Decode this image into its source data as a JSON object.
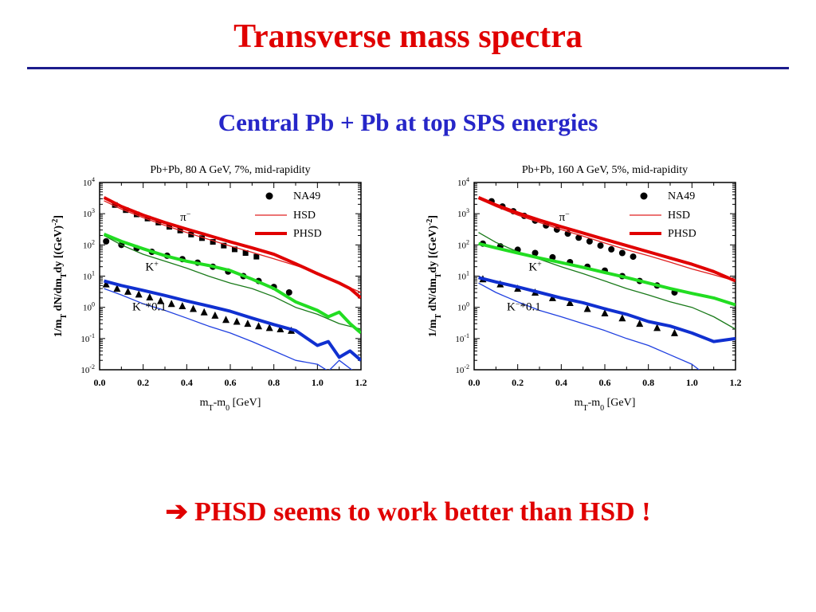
{
  "slide": {
    "title": "Transverse mass spectra",
    "subtitle": "Central Pb + Pb at top SPS energies",
    "conclusion_arrow": "➔",
    "conclusion": "PHSD seems to work better than HSD !",
    "title_color": "#e00000",
    "subtitle_color": "#2626c8",
    "rule_color": "#1c1c8c"
  },
  "chart_data": [
    {
      "type": "line",
      "title": "Pb+Pb, 80 A GeV, 7%, mid-rapidity",
      "xlabel": "mT-m0 [GeV]",
      "ylabel": "1/mT dN/dmTdy [(GeV)-2]",
      "xlim": [
        0.0,
        1.2
      ],
      "ylim": [
        0.01,
        10000
      ],
      "yscale": "log",
      "grid": false,
      "legend_position": "top-right",
      "xticks": [
        "0.0",
        "0.2",
        "0.4",
        "0.6",
        "0.8",
        "1.0",
        "1.2"
      ],
      "yticks": [
        "10-2",
        "10-1",
        "100",
        "101",
        "102",
        "103",
        "104"
      ],
      "legend": [
        "NA49",
        "HSD",
        "PHSD"
      ],
      "annotations": [
        {
          "text": "π−",
          "x": 0.37,
          "y": 600
        },
        {
          "text": "K+",
          "x": 0.21,
          "y": 15
        },
        {
          "text": "K−*0.1",
          "x": 0.15,
          "y": 0.8
        }
      ],
      "series": [
        {
          "name": "NA49",
          "particle": "pi-",
          "marker": "square",
          "x": [
            0.07,
            0.12,
            0.17,
            0.22,
            0.27,
            0.32,
            0.37,
            0.42,
            0.47,
            0.52,
            0.57,
            0.62,
            0.67,
            0.72
          ],
          "y": [
            1900,
            1300,
            950,
            700,
            520,
            380,
            290,
            215,
            165,
            125,
            95,
            72,
            55,
            42
          ]
        },
        {
          "name": "HSD",
          "particle": "pi-",
          "x": [
            0.02,
            0.1,
            0.2,
            0.3,
            0.4,
            0.5,
            0.6,
            0.7,
            0.8,
            0.9,
            1.0,
            1.1,
            1.2
          ],
          "y": [
            2600,
            1400,
            750,
            420,
            250,
            150,
            92,
            58,
            36,
            22,
            13,
            6,
            3
          ]
        },
        {
          "name": "PHSD",
          "particle": "pi-",
          "x": [
            0.02,
            0.1,
            0.2,
            0.3,
            0.4,
            0.5,
            0.6,
            0.7,
            0.8,
            0.9,
            1.0,
            1.1,
            1.15,
            1.2
          ],
          "y": [
            3300,
            1700,
            900,
            520,
            320,
            200,
            125,
            80,
            50,
            25,
            12,
            6,
            4,
            2
          ]
        },
        {
          "name": "NA49",
          "particle": "K+",
          "marker": "circle",
          "x": [
            0.03,
            0.1,
            0.17,
            0.24,
            0.31,
            0.38,
            0.45,
            0.52,
            0.59,
            0.66,
            0.73,
            0.8,
            0.87
          ],
          "y": [
            130,
            100,
            78,
            60,
            45,
            35,
            27,
            20,
            14,
            10,
            7,
            4.5,
            3
          ]
        },
        {
          "name": "HSD",
          "particle": "K+",
          "x": [
            0.02,
            0.1,
            0.2,
            0.3,
            0.4,
            0.5,
            0.6,
            0.7,
            0.8,
            0.9,
            1.0,
            1.1,
            1.2
          ],
          "y": [
            200,
            100,
            50,
            30,
            18,
            10,
            6,
            4,
            2.2,
            1,
            0.6,
            0.3,
            0.2
          ]
        },
        {
          "name": "PHSD",
          "particle": "K+",
          "x": [
            0.02,
            0.1,
            0.2,
            0.3,
            0.4,
            0.5,
            0.6,
            0.7,
            0.8,
            0.9,
            1.0,
            1.05,
            1.1,
            1.15,
            1.2
          ],
          "y": [
            220,
            130,
            75,
            45,
            30,
            22,
            15,
            8,
            4,
            1.5,
            0.8,
            0.5,
            0.7,
            0.3,
            0.15
          ]
        },
        {
          "name": "NA49",
          "particle": "K-",
          "marker": "triangle",
          "x": [
            0.03,
            0.08,
            0.13,
            0.18,
            0.23,
            0.28,
            0.33,
            0.38,
            0.43,
            0.48,
            0.53,
            0.58,
            0.63,
            0.68,
            0.73,
            0.78,
            0.83,
            0.88
          ],
          "y": [
            5.5,
            4,
            3.2,
            2.6,
            2.1,
            1.6,
            1.3,
            1.1,
            0.9,
            0.7,
            0.55,
            0.4,
            0.35,
            0.3,
            0.25,
            0.22,
            0.2,
            0.18
          ]
        },
        {
          "name": "HSD",
          "particle": "K-",
          "x": [
            0.02,
            0.1,
            0.2,
            0.3,
            0.4,
            0.5,
            0.6,
            0.7,
            0.8,
            0.9,
            1.0,
            1.05,
            1.1,
            1.2
          ],
          "y": [
            4,
            2.5,
            1.3,
            0.8,
            0.45,
            0.25,
            0.15,
            0.08,
            0.04,
            0.02,
            0.015,
            0.009,
            0.02,
            0.006
          ]
        },
        {
          "name": "PHSD",
          "particle": "K-",
          "x": [
            0.02,
            0.1,
            0.2,
            0.3,
            0.4,
            0.5,
            0.6,
            0.7,
            0.8,
            0.9,
            1.0,
            1.05,
            1.1,
            1.15,
            1.2
          ],
          "y": [
            7,
            5,
            3.5,
            2.4,
            1.6,
            1.1,
            0.75,
            0.45,
            0.28,
            0.18,
            0.06,
            0.08,
            0.025,
            0.04,
            0.02
          ]
        }
      ]
    },
    {
      "type": "line",
      "title": "Pb+Pb, 160 A GeV, 5%, mid-rapidity",
      "xlabel": "mT-m0 [GeV]",
      "ylabel": "1/mT dN/dmTdy [(GeV)-2]",
      "xlim": [
        0.0,
        1.2
      ],
      "ylim": [
        0.01,
        10000
      ],
      "yscale": "log",
      "grid": false,
      "legend_position": "top-right",
      "xticks": [
        "0.0",
        "0.2",
        "0.4",
        "0.6",
        "0.8",
        "1.0",
        "1.2"
      ],
      "yticks": [
        "10-2",
        "10-1",
        "100",
        "101",
        "102",
        "103",
        "104"
      ],
      "legend": [
        "NA49",
        "HSD",
        "PHSD"
      ],
      "annotations": [
        {
          "text": "π−",
          "x": 0.39,
          "y": 600
        },
        {
          "text": "K+",
          "x": 0.25,
          "y": 15
        },
        {
          "text": "K−*0.1",
          "x": 0.15,
          "y": 0.8
        }
      ],
      "series": [
        {
          "name": "NA49",
          "particle": "pi-",
          "marker": "circle",
          "x": [
            0.08,
            0.13,
            0.18,
            0.23,
            0.28,
            0.33,
            0.38,
            0.43,
            0.48,
            0.53,
            0.58,
            0.63,
            0.68,
            0.73
          ],
          "y": [
            2500,
            1700,
            1200,
            850,
            600,
            420,
            310,
            230,
            170,
            130,
            95,
            72,
            55,
            42
          ]
        },
        {
          "name": "HSD",
          "particle": "pi-",
          "x": [
            0.02,
            0.1,
            0.2,
            0.3,
            0.4,
            0.5,
            0.6,
            0.7,
            0.8,
            0.9,
            1.0,
            1.1,
            1.2
          ],
          "y": [
            3000,
            1700,
            900,
            520,
            310,
            190,
            115,
            70,
            45,
            28,
            17,
            11,
            7
          ]
        },
        {
          "name": "PHSD",
          "particle": "pi-",
          "x": [
            0.02,
            0.1,
            0.2,
            0.3,
            0.4,
            0.5,
            0.6,
            0.7,
            0.8,
            0.9,
            1.0,
            1.1,
            1.2
          ],
          "y": [
            3300,
            1900,
            1050,
            620,
            380,
            240,
            150,
            95,
            60,
            38,
            24,
            14,
            7
          ]
        },
        {
          "name": "NA49",
          "particle": "K+",
          "marker": "circle",
          "x": [
            0.04,
            0.12,
            0.2,
            0.28,
            0.36,
            0.44,
            0.52,
            0.6,
            0.68,
            0.76,
            0.84,
            0.92
          ],
          "y": [
            110,
            90,
            70,
            55,
            40,
            28,
            20,
            15,
            10,
            7,
            5,
            3
          ]
        },
        {
          "name": "HSD",
          "particle": "K+",
          "x": [
            0.02,
            0.1,
            0.2,
            0.3,
            0.4,
            0.5,
            0.6,
            0.7,
            0.8,
            0.9,
            1.0,
            1.1,
            1.2
          ],
          "y": [
            250,
            120,
            60,
            35,
            20,
            12,
            7,
            4,
            2.5,
            1.5,
            1,
            0.5,
            0.2
          ]
        },
        {
          "name": "PHSD",
          "particle": "K+",
          "x": [
            0.02,
            0.1,
            0.2,
            0.3,
            0.4,
            0.5,
            0.6,
            0.7,
            0.8,
            0.9,
            1.0,
            1.1,
            1.2
          ],
          "y": [
            110,
            80,
            55,
            38,
            27,
            19,
            13,
            9,
            6,
            4,
            2.8,
            2,
            1.2
          ]
        },
        {
          "name": "NA49",
          "particle": "K-",
          "marker": "triangle",
          "x": [
            0.04,
            0.12,
            0.2,
            0.28,
            0.36,
            0.44,
            0.52,
            0.6,
            0.68,
            0.76,
            0.84,
            0.92
          ],
          "y": [
            8,
            5.5,
            4,
            3,
            2,
            1.4,
            0.9,
            0.65,
            0.45,
            0.3,
            0.22,
            0.15
          ]
        },
        {
          "name": "HSD",
          "particle": "K-",
          "x": [
            0.02,
            0.1,
            0.2,
            0.3,
            0.4,
            0.5,
            0.6,
            0.7,
            0.8,
            0.9,
            1.0,
            1.05,
            1.1,
            1.15,
            1.2
          ],
          "y": [
            6,
            3,
            1.5,
            0.8,
            0.5,
            0.3,
            0.18,
            0.1,
            0.06,
            0.03,
            0.015,
            0.008,
            0.004,
            0.008,
            0.003
          ]
        },
        {
          "name": "PHSD",
          "particle": "K-",
          "x": [
            0.02,
            0.1,
            0.2,
            0.3,
            0.4,
            0.5,
            0.6,
            0.7,
            0.8,
            0.9,
            1.0,
            1.1,
            1.2
          ],
          "y": [
            9,
            6.5,
            4.5,
            3,
            2,
            1.4,
            0.9,
            0.6,
            0.35,
            0.25,
            0.15,
            0.08,
            0.1
          ]
        }
      ]
    }
  ]
}
